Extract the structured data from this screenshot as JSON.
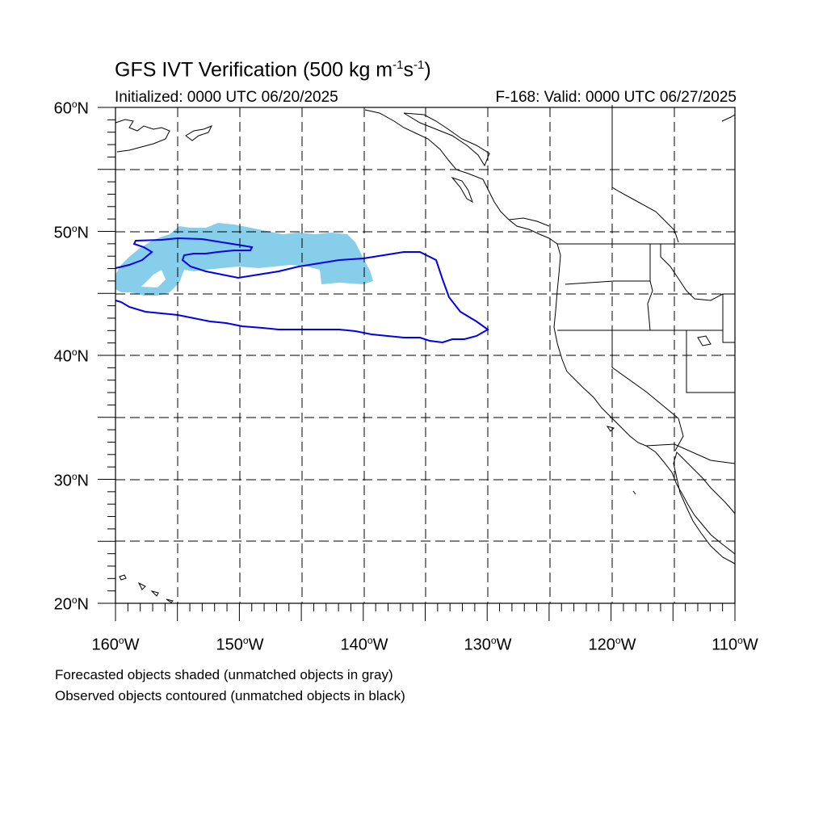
{
  "title": {
    "prefix": "GFS IVT Verification (500 kg m",
    "sup1": "-1",
    "mid": "s",
    "sup2": "-1",
    "suffix": ")"
  },
  "initialized": "Initialized: 0000 UTC 06/20/2025",
  "valid": "F-168: Valid: 0000 UTC 06/27/2025",
  "axes": {
    "lat_labels": [
      {
        "value": "60",
        "unit": "o",
        "hemi": "N"
      },
      {
        "value": "50",
        "unit": "o",
        "hemi": "N"
      },
      {
        "value": "40",
        "unit": "o",
        "hemi": "N"
      },
      {
        "value": "30",
        "unit": "o",
        "hemi": "N"
      },
      {
        "value": "20",
        "unit": "o",
        "hemi": "N"
      }
    ],
    "lon_labels": [
      {
        "value": "160",
        "unit": "o",
        "hemi": "W"
      },
      {
        "value": "150",
        "unit": "o",
        "hemi": "W"
      },
      {
        "value": "140",
        "unit": "o",
        "hemi": "W"
      },
      {
        "value": "130",
        "unit": "o",
        "hemi": "W"
      },
      {
        "value": "120",
        "unit": "o",
        "hemi": "W"
      },
      {
        "value": "110",
        "unit": "o",
        "hemi": "W"
      }
    ],
    "lon_range": [
      -160,
      -110
    ],
    "lat_range": [
      20,
      60
    ],
    "grid_step": 5
  },
  "legend": {
    "line1": "Forecasted objects shaded (unmatched objects in gray)",
    "line2": "Observed objects contoured (unmatched objects in black)"
  },
  "colors": {
    "forecast_fill": "#87ceeb",
    "observed_contour": "#0000ee",
    "coastline": "#000000",
    "grid": "#000000"
  }
}
